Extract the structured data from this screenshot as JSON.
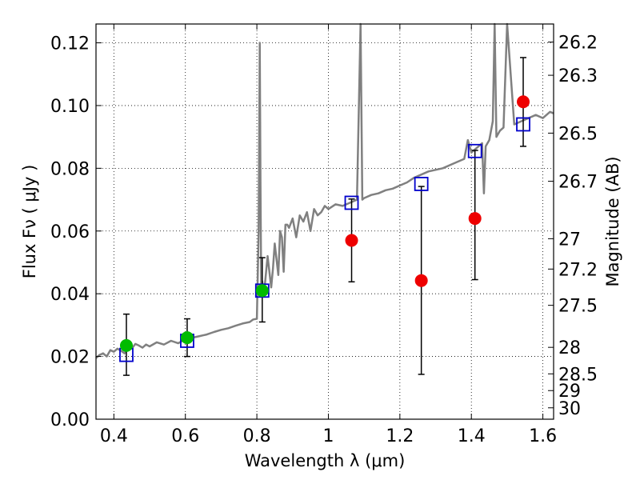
{
  "chart_data": {
    "type": "scatter",
    "xlabel": "Wavelength  λ (μm)",
    "ylabel": "Flux  Fν  ( μJy )",
    "ylabel_right": "Magnitude (AB)",
    "xlim": [
      0.35,
      1.63
    ],
    "ylim": [
      0.0,
      0.126
    ],
    "x_ticks": [
      {
        "value": 0.4,
        "label": "0.4"
      },
      {
        "value": 0.6,
        "label": "0.6"
      },
      {
        "value": 0.8,
        "label": "0.8"
      },
      {
        "value": 1.0,
        "label": "1"
      },
      {
        "value": 1.2,
        "label": "1.2"
      },
      {
        "value": 1.4,
        "label": "1.4"
      },
      {
        "value": 1.6,
        "label": "1.6"
      }
    ],
    "y_ticks": [
      {
        "value": 0.0,
        "label": "0.00"
      },
      {
        "value": 0.02,
        "label": "0.02"
      },
      {
        "value": 0.04,
        "label": "0.04"
      },
      {
        "value": 0.06,
        "label": "0.06"
      },
      {
        "value": 0.08,
        "label": "0.08"
      },
      {
        "value": 0.1,
        "label": "0.10"
      },
      {
        "value": 0.12,
        "label": "0.12"
      }
    ],
    "right_ticks": [
      {
        "value": 26.2,
        "label": "26.2"
      },
      {
        "value": 26.3,
        "label": "26.3"
      },
      {
        "value": 26.5,
        "label": "26.5"
      },
      {
        "value": 26.7,
        "label": "26.7"
      },
      {
        "value": 27.0,
        "label": "27"
      },
      {
        "value": 27.2,
        "label": "27.2"
      },
      {
        "value": 27.5,
        "label": "27.5"
      },
      {
        "value": 28.0,
        "label": "28"
      },
      {
        "value": 28.5,
        "label": "28.5"
      },
      {
        "value": 29.0,
        "label": "29"
      },
      {
        "value": 30.0,
        "label": "30"
      }
    ],
    "grid": true,
    "grid_style": "dotted",
    "colors": {
      "template": "#808080",
      "green_points": "#00bb00",
      "red_points": "#ee0000",
      "model_squares": "#0000cc",
      "errorbar": "#000000"
    },
    "series": [
      {
        "style": "line",
        "x": [
          0.35,
          0.36,
          0.37,
          0.38,
          0.39,
          0.4,
          0.41,
          0.42,
          0.43,
          0.44,
          0.45,
          0.46,
          0.47,
          0.48,
          0.49,
          0.5,
          0.52,
          0.54,
          0.56,
          0.58,
          0.6,
          0.62,
          0.64,
          0.66,
          0.68,
          0.7,
          0.72,
          0.74,
          0.76,
          0.78,
          0.79,
          0.8,
          0.805,
          0.808,
          0.81,
          0.812,
          0.815,
          0.82,
          0.83,
          0.84,
          0.845,
          0.85,
          0.86,
          0.865,
          0.87,
          0.875,
          0.88,
          0.885,
          0.89,
          0.9,
          0.91,
          0.92,
          0.93,
          0.94,
          0.95,
          0.96,
          0.97,
          0.98,
          0.99,
          1.0,
          1.02,
          1.04,
          1.06,
          1.08,
          1.09,
          1.095,
          1.1,
          1.12,
          1.14,
          1.16,
          1.18,
          1.2,
          1.22,
          1.24,
          1.26,
          1.28,
          1.3,
          1.32,
          1.34,
          1.36,
          1.38,
          1.39,
          1.4,
          1.42,
          1.43,
          1.435,
          1.44,
          1.45,
          1.46,
          1.465,
          1.47,
          1.48,
          1.49,
          1.5,
          1.52,
          1.54,
          1.56,
          1.58,
          1.6,
          1.62,
          1.63
        ],
        "y": [
          0.0195,
          0.0205,
          0.021,
          0.02,
          0.022,
          0.0215,
          0.0225,
          0.0218,
          0.021,
          0.023,
          0.0225,
          0.024,
          0.0235,
          0.0228,
          0.0238,
          0.0232,
          0.0245,
          0.0238,
          0.025,
          0.0242,
          0.0255,
          0.026,
          0.0265,
          0.027,
          0.0278,
          0.0285,
          0.029,
          0.0298,
          0.0305,
          0.031,
          0.0318,
          0.032,
          0.06,
          0.12,
          0.075,
          0.042,
          0.044,
          0.04,
          0.052,
          0.042,
          0.048,
          0.056,
          0.046,
          0.06,
          0.058,
          0.047,
          0.062,
          0.062,
          0.061,
          0.064,
          0.058,
          0.065,
          0.063,
          0.066,
          0.06,
          0.067,
          0.065,
          0.066,
          0.068,
          0.067,
          0.0685,
          0.068,
          0.069,
          0.07,
          0.126,
          0.07,
          0.0705,
          0.0715,
          0.072,
          0.073,
          0.0735,
          0.0745,
          0.0755,
          0.077,
          0.078,
          0.079,
          0.0795,
          0.08,
          0.081,
          0.082,
          0.083,
          0.089,
          0.085,
          0.087,
          0.088,
          0.072,
          0.087,
          0.089,
          0.095,
          0.126,
          0.09,
          0.092,
          0.093,
          0.126,
          0.094,
          0.095,
          0.096,
          0.097,
          0.096,
          0.098,
          0.0975
        ]
      },
      {
        "style": "points-green",
        "x": [
          0.435,
          0.605,
          0.815
        ],
        "y": [
          0.0235,
          0.026,
          0.041
        ],
        "yerr_low": [
          0.014,
          0.02,
          0.031
        ],
        "yerr_high": [
          0.0335,
          0.032,
          0.0515
        ]
      },
      {
        "style": "points-red",
        "x": [
          1.065,
          1.26,
          1.41,
          1.545
        ],
        "y": [
          0.057,
          0.0442,
          0.064,
          0.1012
        ],
        "yerr_low": [
          0.0438,
          0.0143,
          0.0445,
          0.087
        ],
        "yerr_high": [
          0.0702,
          0.0742,
          0.0857,
          0.1153
        ]
      },
      {
        "style": "squares-blue",
        "x": [
          0.435,
          0.605,
          0.815,
          1.065,
          1.26,
          1.41,
          1.545
        ],
        "y": [
          0.0205,
          0.025,
          0.041,
          0.069,
          0.075,
          0.0855,
          0.094
        ]
      }
    ]
  }
}
